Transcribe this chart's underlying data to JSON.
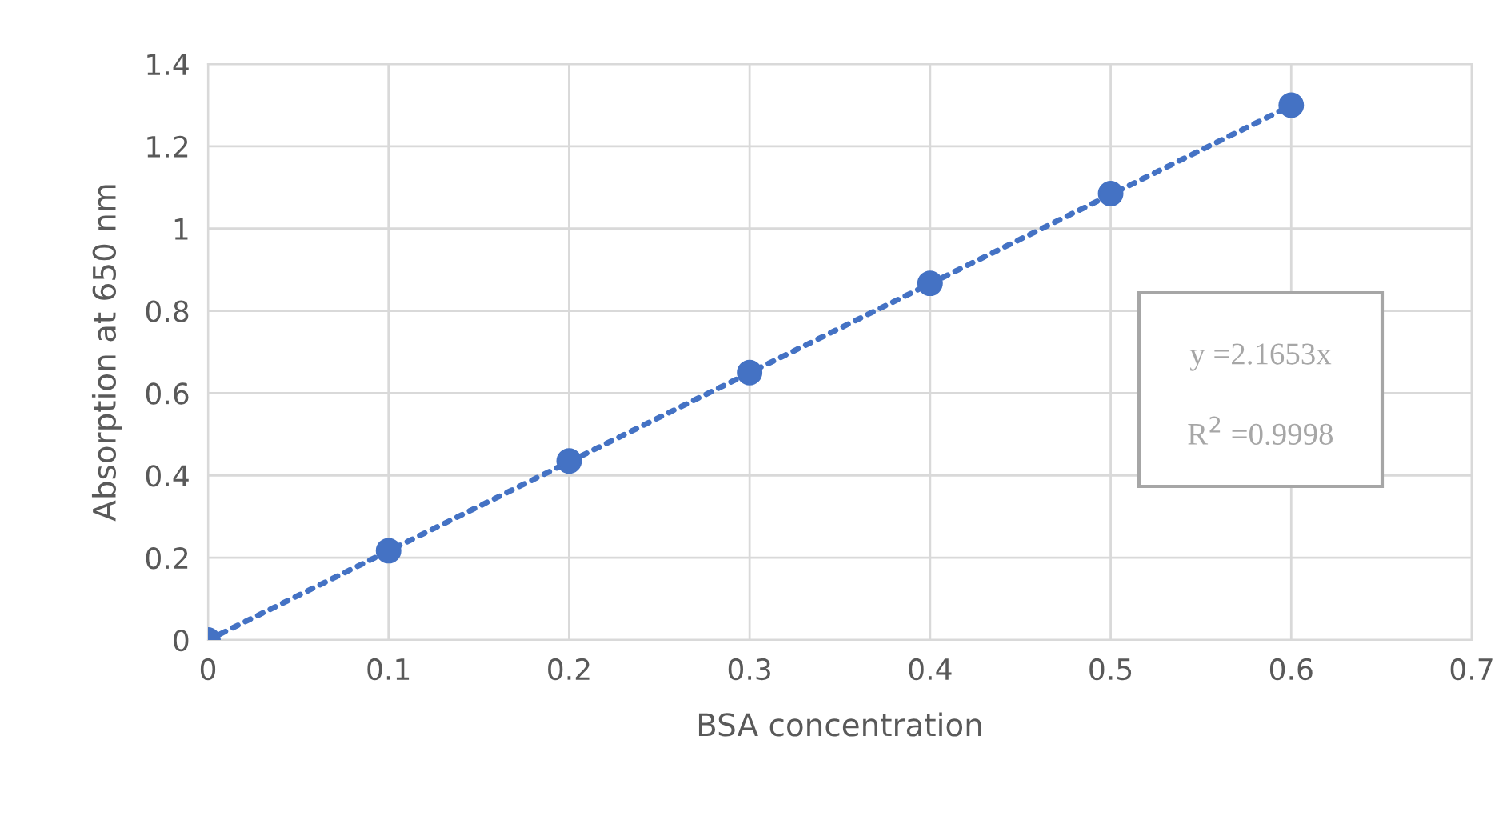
{
  "chart_data": {
    "type": "scatter",
    "xlabel": "BSA concentration",
    "ylabel": "Absorption at 650 nm",
    "x": [
      0,
      0.1,
      0.2,
      0.3,
      0.4,
      0.5,
      0.6
    ],
    "series": [
      {
        "color": "#4472c4",
        "marker": "circle",
        "values": [
          0,
          0.217,
          0.435,
          0.65,
          0.867,
          1.085,
          1.3
        ]
      },
      {
        "type": "line",
        "color": "#4472c4",
        "line_style": "dotted",
        "x": [
          0,
          0.6
        ],
        "values": [
          0,
          1.299
        ]
      }
    ],
    "annotations": [
      "y =2.1653x",
      "R$^{2}$ =0.9998"
    ],
    "xlim": [
      0,
      0.7
    ],
    "xticks": [
      0,
      0.1,
      0.2,
      0.3,
      0.4,
      0.5,
      0.6,
      0.7
    ],
    "ylim": [
      0,
      1.4
    ],
    "yticks": [
      0,
      0.2,
      0.4,
      0.6,
      0.8,
      1,
      1.2,
      1.4
    ],
    "grid": true
  }
}
